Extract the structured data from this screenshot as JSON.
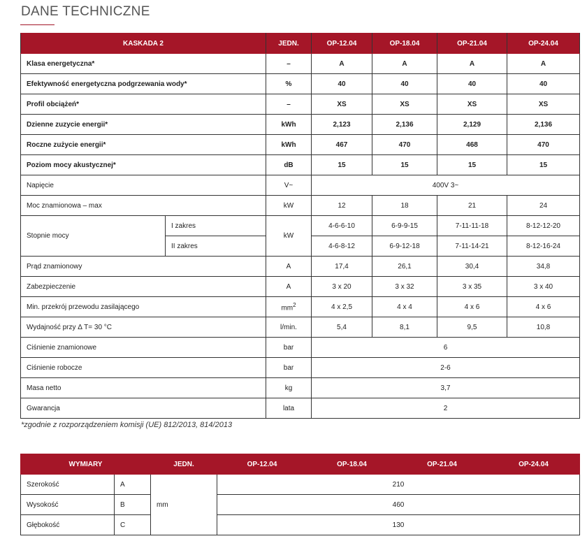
{
  "page_title": "DANE TECHNICZNE",
  "tech_table": {
    "headers": [
      "KASKADA 2",
      "JEDN.",
      "OP-12.04",
      "OP-18.04",
      "OP-21.04",
      "OP-24.04"
    ],
    "rows": [
      {
        "label": "Klasa energetyczna*",
        "unit": "–",
        "values": [
          "A",
          "A",
          "A",
          "A"
        ]
      },
      {
        "label": "Efektywność energetyczna podgrzewania wody*",
        "unit": "%",
        "values": [
          "40",
          "40",
          "40",
          "40"
        ]
      },
      {
        "label": "Profil obciążeń*",
        "unit": "–",
        "values": [
          "XS",
          "XS",
          "XS",
          "XS"
        ]
      },
      {
        "label": "Dzienne zuzycie energii*",
        "unit": "kWh",
        "values": [
          "2,123",
          "2,136",
          "2,129",
          "2,136"
        ]
      },
      {
        "label": "Roczne zużycie energii*",
        "unit": "kWh",
        "values": [
          "467",
          "470",
          "468",
          "470"
        ]
      },
      {
        "label": "Poziom mocy akustycznej*",
        "unit": "dB",
        "values": [
          "15",
          "15",
          "15",
          "15"
        ]
      },
      {
        "label": "Napięcie",
        "unit": "V~",
        "value": "400V 3~"
      },
      {
        "label": "Moc znamionowa – max",
        "unit": "kW",
        "values": [
          "12",
          "18",
          "21",
          "24"
        ]
      },
      {
        "label": "Stopnie mocy",
        "unit": "kW",
        "sub": [
          {
            "label": "I zakres",
            "values": [
              "4-6-6-10",
              "6-9-9-15",
              "7-11-11-18",
              "8-12-12-20"
            ]
          },
          {
            "label": "II zakres",
            "values": [
              "4-6-8-12",
              "6-9-12-18",
              "7-11-14-21",
              "8-12-16-24"
            ]
          }
        ]
      },
      {
        "label": "Prąd znamionowy",
        "unit": "A",
        "values": [
          "17,4",
          "26,1",
          "30,4",
          "34,8"
        ]
      },
      {
        "label": "Zabezpieczenie",
        "unit": "A",
        "values": [
          "3 x 20",
          "3 x 32",
          "3 x 35",
          "3 x 40"
        ]
      },
      {
        "label": "Min. przekrój przewodu zasilającego",
        "unit": "mm",
        "unit_sup": "2",
        "values": [
          "4 x 2,5",
          "4 x 4",
          "4 x 6",
          "4 x 6"
        ]
      },
      {
        "label": "Wydajność przy Δ T= 30 °C",
        "unit": "l/min.",
        "values": [
          "5,4",
          "8,1",
          "9,5",
          "10,8"
        ]
      },
      {
        "label": "Ciśnienie znamionowe",
        "unit": "bar",
        "value": "6"
      },
      {
        "label": "Ciśnienie robocze",
        "unit": "bar",
        "value": "2-6"
      },
      {
        "label": "Masa netto",
        "unit": "kg",
        "value": "3,7"
      },
      {
        "label": "Gwarancja",
        "unit": "lata",
        "value": "2"
      }
    ]
  },
  "footnote": "*zgodnie z rozporządzeniem komisji (UE) 812/2013, 814/2013",
  "dim_table": {
    "headers": [
      "WYMIARY",
      "JEDN.",
      "OP-12.04",
      "OP-18.04",
      "OP-21.04",
      "OP-24.04"
    ],
    "unit": "mm",
    "rows": [
      {
        "label": "Szerokość",
        "letter": "A",
        "value": "210"
      },
      {
        "label": "Wysokość",
        "letter": "B",
        "value": "460"
      },
      {
        "label": "Głębokość",
        "letter": "C",
        "value": "130"
      }
    ]
  },
  "colors": {
    "header_bg": "#a51628",
    "accent": "#a31527"
  }
}
